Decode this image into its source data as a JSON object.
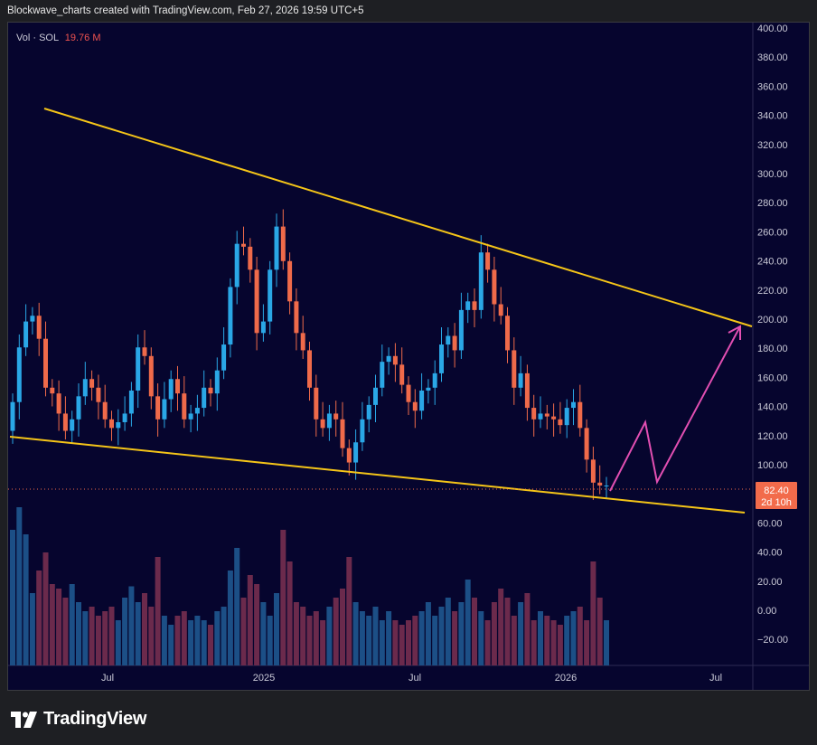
{
  "header": {
    "caption": "Blockwave_charts created with TradingView.com, Feb 27, 2026 19:59 UTC+5"
  },
  "legend": {
    "label": "Vol · SOL",
    "value": "19.76 M"
  },
  "price_badge": {
    "price": "82.40",
    "countdown": "2d 10h"
  },
  "brand": {
    "name": "TradingView",
    "logo_icon": "tradingview-logo-icon"
  },
  "colors": {
    "background": "#06052e",
    "up": "#2aa7e6",
    "down": "#ef6a4a",
    "trendline": "#f5c518",
    "projection": "#e24fb2",
    "vol_up": "#1c4f86",
    "vol_down": "#6b2a4c",
    "badge": "#f26b4b"
  },
  "chart_data": {
    "type": "candlestick",
    "title": "",
    "y_axis": {
      "ticks": [
        "400.00",
        "380.00",
        "360.00",
        "340.00",
        "320.00",
        "300.00",
        "280.00",
        "260.00",
        "240.00",
        "220.00",
        "200.00",
        "180.00",
        "160.00",
        "140.00",
        "120.00",
        "100.00",
        "80.00",
        "60.00",
        "40.00",
        "20.00",
        "0.00",
        "−20.00"
      ],
      "price_range": [
        60,
        400
      ]
    },
    "x_axis": {
      "ticks": [
        "Jul",
        "2025",
        "Jul",
        "2026",
        "Jul"
      ]
    },
    "last_price": 82.4,
    "weekly_closes": [
      140,
      178,
      196,
      200,
      184,
      150,
      146,
      132,
      120,
      128,
      144,
      156,
      150,
      140,
      128,
      122,
      126,
      132,
      148,
      178,
      172,
      144,
      128,
      142,
      156,
      146,
      128,
      132,
      136,
      150,
      146,
      162,
      180,
      220,
      250,
      248,
      232,
      188,
      196,
      232,
      262,
      238,
      210,
      188,
      176,
      150,
      128,
      122,
      132,
      128,
      108,
      98,
      112,
      128,
      138,
      150,
      168,
      172,
      166,
      152,
      140,
      134,
      148,
      150,
      160,
      180,
      186,
      176,
      204,
      210,
      204,
      244,
      232,
      208,
      200,
      176,
      150,
      160,
      136,
      128,
      132,
      130,
      128,
      124,
      136,
      140,
      122,
      100,
      84,
      82,
      82
    ],
    "volume_millions": [
      60,
      70,
      58,
      32,
      42,
      50,
      36,
      34,
      30,
      36,
      28,
      24,
      26,
      22,
      24,
      26,
      20,
      30,
      35,
      28,
      32,
      26,
      48,
      22,
      18,
      22,
      24,
      20,
      22,
      20,
      18,
      24,
      26,
      42,
      52,
      30,
      40,
      36,
      28,
      22,
      32,
      60,
      46,
      28,
      26,
      22,
      24,
      20,
      26,
      30,
      34,
      48,
      28,
      24,
      22,
      26,
      20,
      24,
      20,
      18,
      20,
      22,
      24,
      28,
      22,
      26,
      30,
      24,
      28,
      38,
      30,
      24,
      20,
      28,
      34,
      30,
      22,
      28,
      32,
      20,
      24,
      22,
      20,
      18,
      22,
      24,
      26,
      20,
      46,
      30,
      20
    ]
  }
}
